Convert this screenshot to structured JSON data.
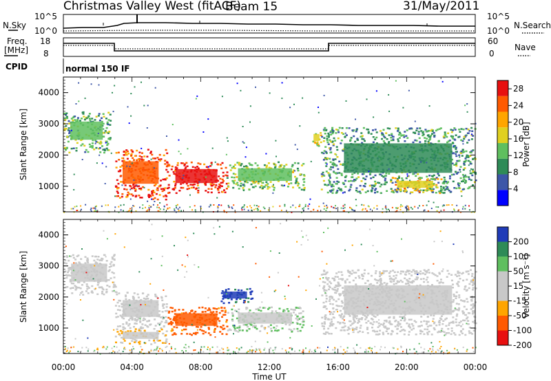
{
  "header": {
    "station": "Christmas Valley West (fitACF)",
    "beam": "Beam 15",
    "date": "31/May/2011"
  },
  "noise_panel": {
    "left_label": "N.Sky",
    "left_ticks": [
      "10^5",
      "10^0"
    ],
    "right_ticks": [
      "10^5",
      "10^0"
    ],
    "right_label": "N.Search"
  },
  "freq_panel": {
    "left_label_line1": "Freq.",
    "left_label_line2": "[MHz]",
    "left_ticks": [
      "18",
      "8"
    ],
    "right_ticks": [
      "60",
      "0"
    ],
    "right_label": "Nave"
  },
  "cpid_panel": {
    "label": "CPID",
    "mode": "normal 150 IF"
  },
  "colors": {
    "power_scale": [
      "#0000ff",
      "#3c56a8",
      "#2e8b57",
      "#5fbf5f",
      "#e0d020",
      "#ffa500",
      "#ff5a00",
      "#e81010"
    ],
    "velocity_scale": [
      "#1f3bb8",
      "#2e8b57",
      "#5fbf5f",
      "#c8c8c8",
      "#c8c8c8",
      "#ffa500",
      "#ff5a00",
      "#e81010"
    ],
    "ground_scatter": "#c8c8c8"
  },
  "chart_data": [
    {
      "type": "line",
      "title": "N.Sky / N.Search",
      "x": [
        "00:00",
        "01:00",
        "02:00",
        "03:00",
        "04:00",
        "05:00",
        "06:00",
        "08:00",
        "10:00",
        "12:00",
        "14:00",
        "16:00",
        "18:00",
        "20:00",
        "22:00",
        "24:00"
      ],
      "series": [
        {
          "name": "N.Sky",
          "values": [
            100,
            300,
            400,
            300,
            20000,
            30000,
            20000,
            15000,
            12000,
            10000,
            8000,
            5000,
            4000,
            3000,
            3000,
            3000
          ]
        },
        {
          "name": "N.Search",
          "values": [
            1,
            1,
            1,
            1,
            2,
            3,
            3,
            3,
            2,
            2,
            2,
            1,
            1,
            1,
            1,
            1
          ]
        }
      ]
    },
    {
      "type": "line",
      "title": "Freq / Nave",
      "x": [
        "00:00",
        "03:00",
        "03:01",
        "15:00",
        "15:01",
        "24:00"
      ],
      "series": [
        {
          "name": "Freq.",
          "values": [
            16,
            16,
            10,
            10,
            16,
            16
          ]
        },
        {
          "name": "Nave",
          "values": [
            37,
            37,
            38,
            38,
            37,
            37
          ]
        }
      ]
    },
    {
      "type": "heatmap",
      "title": "Power",
      "xlabel": "Time UT",
      "ylabel": "Slant Range [km]",
      "ylim": [
        180,
        4500
      ],
      "xlim": [
        0,
        24
      ],
      "x_ticks": [
        "00:00",
        "04:00",
        "08:00",
        "12:00",
        "16:00",
        "20:00",
        "00:00"
      ],
      "y_ticks": [
        "1000",
        "2000",
        "3000",
        "4000"
      ],
      "colorbar": {
        "label": "Power [dB]",
        "ticks": [
          "28",
          "24",
          "20",
          "16",
          "12",
          "8",
          "4"
        ],
        "range": [
          0,
          30
        ]
      },
      "regions": [
        {
          "t0": 0.0,
          "t1": 2.7,
          "r0": 2100,
          "r1": 3400,
          "value": 12
        },
        {
          "t0": 3.0,
          "t1": 6.0,
          "r0": 600,
          "r1": 2200,
          "value": 26
        },
        {
          "t0": 6.0,
          "t1": 9.5,
          "r0": 800,
          "r1": 1800,
          "value": 27
        },
        {
          "t0": 9.5,
          "t1": 14.0,
          "r0": 900,
          "r1": 1800,
          "value": 14
        },
        {
          "t0": 14.5,
          "t1": 15.0,
          "r0": 2300,
          "r1": 2800,
          "value": 18
        },
        {
          "t0": 15.0,
          "t1": 24.0,
          "r0": 800,
          "r1": 2900,
          "value": 10
        },
        {
          "t0": 19.0,
          "t1": 22.0,
          "r0": 800,
          "r1": 1300,
          "value": 18
        }
      ]
    },
    {
      "type": "heatmap",
      "title": "Velocity",
      "xlabel": "Time UT",
      "ylabel": "Slant Range [km]",
      "ylim": [
        180,
        4500
      ],
      "xlim": [
        0,
        24
      ],
      "x_ticks": [
        "00:00",
        "04:00",
        "08:00",
        "12:00",
        "16:00",
        "20:00",
        "00:00"
      ],
      "y_ticks": [
        "1000",
        "2000",
        "3000",
        "4000"
      ],
      "colorbar": {
        "label": "Velocity [m s⁻¹]",
        "ticks": [
          "200",
          "100",
          "50",
          "15",
          "-15",
          "-50",
          "-100",
          "-200"
        ],
        "range": [
          -250,
          250
        ]
      },
      "regions": [
        {
          "t0": 0.0,
          "t1": 3.0,
          "r0": 2100,
          "r1": 3400,
          "value": 0
        },
        {
          "t0": 3.0,
          "t1": 6.0,
          "r0": 1000,
          "r1": 2200,
          "value": 0
        },
        {
          "t0": 3.0,
          "t1": 6.0,
          "r0": 500,
          "r1": 1000,
          "value": -60
        },
        {
          "t0": 6.0,
          "t1": 9.5,
          "r0": 800,
          "r1": 1700,
          "value": -150
        },
        {
          "t0": 9.0,
          "t1": 11.0,
          "r0": 1800,
          "r1": 2300,
          "value": 200
        },
        {
          "t0": 9.5,
          "t1": 14.0,
          "r0": 900,
          "r1": 1700,
          "value": 60
        },
        {
          "t0": 15.0,
          "t1": 24.0,
          "r0": 800,
          "r1": 2900,
          "value": 0
        }
      ]
    }
  ]
}
